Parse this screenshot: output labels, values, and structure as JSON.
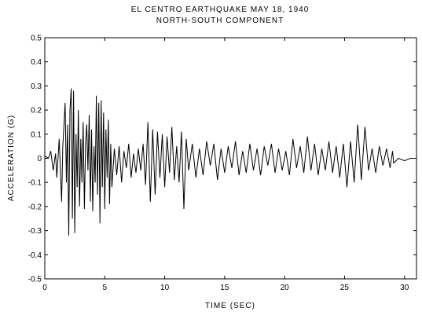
{
  "chart_data": {
    "type": "line",
    "title": "EL CENTRO EARTHQUAKE  MAY 18, 1940",
    "subtitle": "NORTH-SOUTH COMPONENT",
    "xlabel": "TIME (SEC)",
    "ylabel": "ACCELERATION (G)",
    "xlim": [
      0,
      31
    ],
    "ylim": [
      -0.5,
      0.5
    ],
    "x_ticks": [
      0,
      5,
      10,
      15,
      20,
      25,
      30
    ],
    "x_tick_labels": [
      "0",
      "5",
      "10",
      "15",
      "20",
      "25",
      "30"
    ],
    "y_ticks": [
      0.5,
      0.4,
      0.3,
      0.2,
      0.1,
      0,
      -0.1,
      -0.2,
      -0.3,
      -0.4,
      -0.5
    ],
    "y_tick_labels": [
      "0.5",
      "0.4",
      "0.3",
      "0.2",
      "0.1",
      "0",
      "-0.1",
      "-0.2",
      "-0.3",
      "-0.4",
      "-0.5"
    ],
    "grid": false,
    "series": [
      {
        "color": "#000000",
        "x": [
          0,
          0.3,
          0.5,
          0.7,
          0.9,
          1.0,
          1.2,
          1.4,
          1.5,
          1.7,
          1.8,
          1.9,
          2.0,
          2.1,
          2.2,
          2.3,
          2.4,
          2.5,
          2.6,
          2.7,
          2.8,
          2.9,
          3.0,
          3.1,
          3.2,
          3.3,
          3.4,
          3.5,
          3.6,
          3.7,
          3.8,
          3.9,
          4.0,
          4.1,
          4.2,
          4.3,
          4.4,
          4.5,
          4.6,
          4.7,
          4.8,
          4.9,
          5.0,
          5.1,
          5.2,
          5.3,
          5.4,
          5.5,
          5.6,
          5.8,
          6.0,
          6.2,
          6.4,
          6.6,
          6.8,
          7.0,
          7.2,
          7.4,
          7.6,
          7.8,
          8.0,
          8.2,
          8.4,
          8.6,
          8.8,
          9.0,
          9.2,
          9.4,
          9.6,
          9.8,
          10.0,
          10.2,
          10.4,
          10.6,
          10.8,
          11.0,
          11.2,
          11.4,
          11.6,
          11.8,
          12.0,
          12.3,
          12.6,
          12.9,
          13.2,
          13.5,
          13.8,
          14.1,
          14.4,
          14.7,
          15.0,
          15.3,
          15.6,
          15.9,
          16.2,
          16.5,
          16.8,
          17.1,
          17.4,
          17.7,
          18.0,
          18.3,
          18.6,
          18.9,
          19.2,
          19.5,
          19.8,
          20.1,
          20.4,
          20.7,
          21.0,
          21.3,
          21.6,
          21.9,
          22.2,
          22.5,
          22.8,
          23.1,
          23.4,
          23.7,
          24.0,
          24.3,
          24.6,
          24.9,
          25.2,
          25.5,
          25.8,
          26.1,
          26.4,
          26.7,
          27.0,
          27.3,
          27.6,
          27.9,
          28.2,
          28.5,
          28.8,
          29.0,
          29.1,
          29.5,
          30.0,
          30.5,
          31.0
        ],
        "y": [
          0.01,
          0.0,
          0.03,
          -0.05,
          0.02,
          -0.08,
          0.08,
          -0.18,
          0.05,
          0.23,
          -0.1,
          0.14,
          -0.32,
          0.2,
          0.29,
          -0.25,
          0.28,
          -0.31,
          0.1,
          -0.12,
          0.2,
          -0.2,
          0.08,
          -0.1,
          0.15,
          -0.21,
          0.06,
          0.14,
          -0.05,
          0.18,
          -0.18,
          0.12,
          -0.22,
          0.05,
          -0.1,
          0.26,
          -0.15,
          0.23,
          -0.27,
          0.24,
          -0.12,
          0.19,
          -0.21,
          0.12,
          -0.08,
          0.16,
          -0.19,
          0.06,
          -0.12,
          0.04,
          -0.07,
          0.05,
          -0.1,
          0.03,
          -0.04,
          0.06,
          -0.08,
          0.02,
          -0.06,
          0.04,
          -0.05,
          0.06,
          -0.11,
          0.15,
          -0.18,
          0.12,
          -0.15,
          0.11,
          -0.08,
          0.1,
          -0.12,
          0.09,
          -0.06,
          0.13,
          -0.09,
          0.05,
          -0.1,
          0.11,
          -0.21,
          0.08,
          -0.05,
          0.06,
          -0.08,
          0.04,
          -0.07,
          0.07,
          -0.03,
          0.06,
          -0.09,
          0.04,
          -0.06,
          0.05,
          -0.04,
          0.07,
          -0.07,
          0.03,
          -0.06,
          0.06,
          -0.05,
          0.04,
          -0.07,
          0.05,
          -0.03,
          0.06,
          -0.06,
          0.04,
          -0.05,
          0.03,
          -0.07,
          0.08,
          -0.04,
          0.05,
          -0.06,
          0.09,
          -0.05,
          0.06,
          -0.07,
          0.04,
          -0.05,
          0.07,
          -0.06,
          0.05,
          -0.08,
          0.06,
          -0.12,
          0.07,
          -0.1,
          0.14,
          -0.09,
          0.13,
          -0.05,
          0.04,
          -0.06,
          0.05,
          -0.03,
          0.04,
          -0.04,
          0.03,
          -0.02,
          0.0,
          -0.01,
          0.0,
          0.0
        ]
      }
    ]
  }
}
